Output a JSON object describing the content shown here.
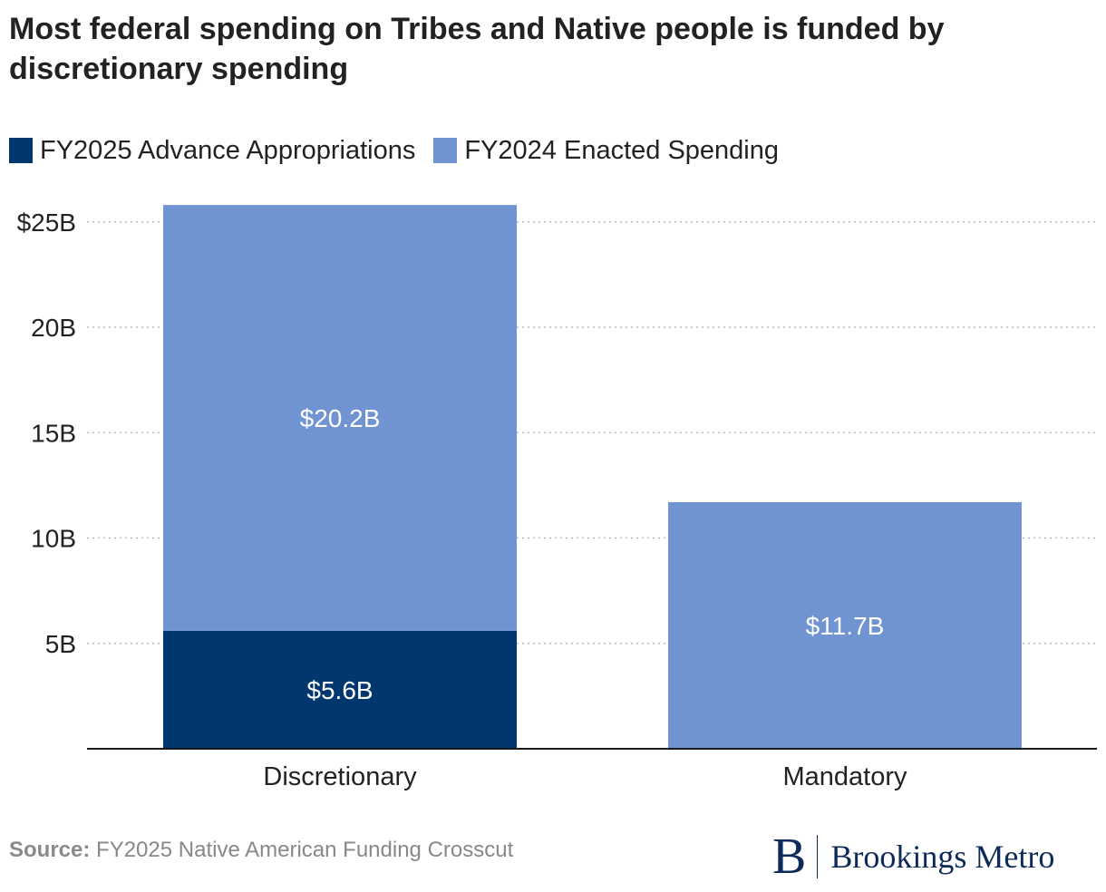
{
  "title": "Most federal spending on Tribes and Native people is funded by discretionary spending",
  "legend": [
    {
      "label": "FY2025 Advance Appropriations",
      "color": "#00376e"
    },
    {
      "label": "FY2024 Enacted Spending",
      "color": "#7093d1"
    }
  ],
  "source": {
    "prefix": "Source:",
    "text": "FY2025 Native American Funding Crosscut"
  },
  "logo": {
    "mark": "B",
    "name": "Brookings Metro"
  },
  "chart_data": {
    "type": "bar",
    "stacked": true,
    "categories": [
      "Discretionary",
      "Mandatory"
    ],
    "series": [
      {
        "name": "FY2025 Advance Appropriations",
        "color": "#00376e",
        "values": [
          5.6,
          0
        ],
        "labels": [
          "$5.6B",
          ""
        ]
      },
      {
        "name": "FY2024 Enacted Spending",
        "color": "#7093d1",
        "values": [
          20.2,
          11.7
        ],
        "labels": [
          "$20.2B",
          "$11.7B"
        ]
      }
    ],
    "ylim": [
      0,
      25
    ],
    "yticks": [
      5,
      10,
      15,
      20,
      25
    ],
    "ytick_labels": [
      "5B",
      "10B",
      "15B",
      "20B",
      "$25B"
    ],
    "xlabel": "",
    "ylabel": "",
    "grid": true,
    "legend_position": "top-left"
  }
}
